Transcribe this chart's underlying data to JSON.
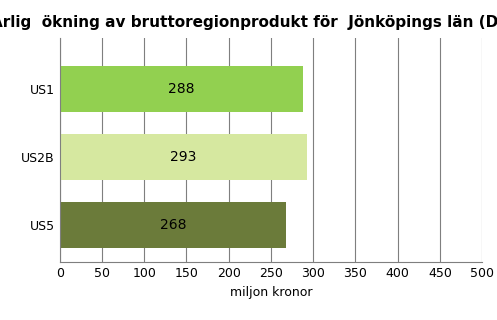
{
  "title": "Årlig  ökning av bruttoregionprodukt för  Jönköpings län (Dynlok)",
  "categories": [
    "US1",
    "US2B",
    "US5"
  ],
  "values": [
    288,
    293,
    268
  ],
  "bar_colors": [
    "#92D050",
    "#D6E8A0",
    "#6B7B3A"
  ],
  "xlabel": "miljon kronor",
  "xlim": [
    0,
    500
  ],
  "xticks": [
    0,
    50,
    100,
    150,
    200,
    250,
    300,
    350,
    400,
    450,
    500
  ],
  "background_color": "#FFFFFF",
  "grid_color": "#7F7F7F",
  "title_fontsize": 11,
  "label_fontsize": 9,
  "tick_fontsize": 9,
  "bar_label_fontsize": 10,
  "bar_height": 0.68,
  "ylim_bottom": -0.55,
  "ylim_top": 2.75
}
